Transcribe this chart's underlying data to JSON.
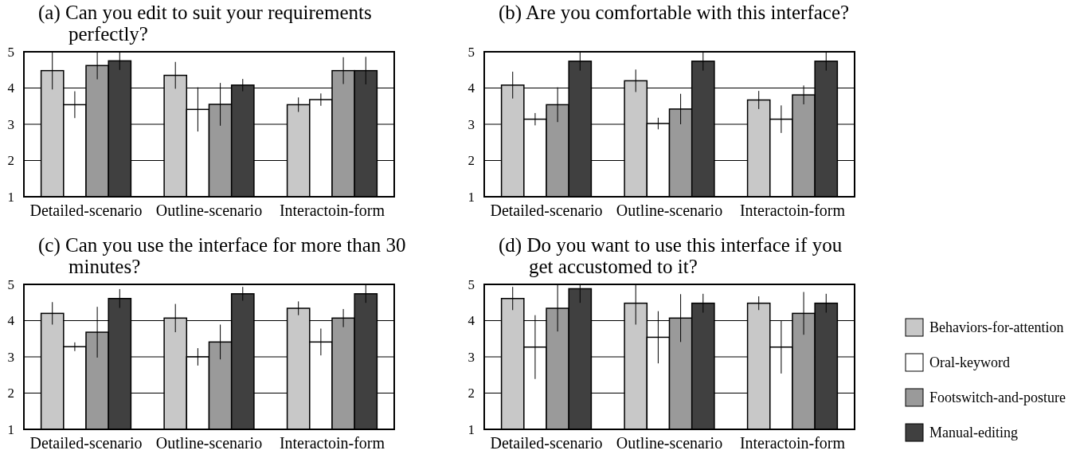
{
  "chart_data": [
    {
      "type": "bar",
      "title": "(a) Can you edit to suit your requirements perfectly?",
      "categories": [
        "Detailed-scenario",
        "Outline-scenario",
        "Interactoin-form"
      ],
      "ylim": [
        1,
        5
      ],
      "yticks": [
        1,
        2,
        3,
        4,
        5
      ],
      "grid": "y",
      "legend": false,
      "series": [
        {
          "color": "#c8c8c8",
          "values": [
            4.48,
            4.35,
            3.54
          ],
          "errors": [
            0.52,
            0.37,
            0.2
          ]
        },
        {
          "color": "#ffffff",
          "values": [
            3.54,
            3.41,
            3.68
          ],
          "errors": [
            0.37,
            0.61,
            0.17
          ]
        },
        {
          "color": "#9a9a9a",
          "values": [
            4.62,
            3.55,
            4.48
          ],
          "errors": [
            0.38,
            0.59,
            0.37
          ]
        },
        {
          "color": "#404040",
          "values": [
            4.75,
            4.08,
            4.48
          ],
          "errors": [
            0.25,
            0.17,
            0.38
          ]
        }
      ]
    },
    {
      "type": "bar",
      "title": "(b) Are you comfortable with this interface?",
      "categories": [
        "Detailed-scenario",
        "Outline-scenario",
        "Interactoin-form"
      ],
      "ylim": [
        1,
        5
      ],
      "yticks": [
        1,
        2,
        3,
        4,
        5
      ],
      "grid": "y",
      "legend": false,
      "series": [
        {
          "color": "#c8c8c8",
          "values": [
            4.08,
            4.2,
            3.67
          ],
          "errors": [
            0.37,
            0.31,
            0.25
          ]
        },
        {
          "color": "#ffffff",
          "values": [
            3.14,
            3.02,
            3.14
          ],
          "errors": [
            0.17,
            0.16,
            0.38
          ]
        },
        {
          "color": "#9a9a9a",
          "values": [
            3.54,
            3.42,
            3.81
          ],
          "errors": [
            0.48,
            0.42,
            0.26
          ]
        },
        {
          "color": "#404040",
          "values": [
            4.74,
            4.74,
            4.74
          ],
          "errors": [
            0.26,
            0.26,
            0.26
          ]
        }
      ]
    },
    {
      "type": "bar",
      "title": "(c) Can you use the interface for more than 30 minutes?",
      "categories": [
        "Detailed-scenario",
        "Outline-scenario",
        "Interactoin-form"
      ],
      "ylim": [
        1,
        5
      ],
      "yticks": [
        1,
        2,
        3,
        4,
        5
      ],
      "grid": "y",
      "legend": false,
      "series": [
        {
          "color": "#c8c8c8",
          "values": [
            4.2,
            4.07,
            4.34
          ],
          "errors": [
            0.31,
            0.39,
            0.19
          ]
        },
        {
          "color": "#ffffff",
          "values": [
            3.28,
            3.0,
            3.41
          ],
          "errors": [
            0.12,
            0.24,
            0.37
          ]
        },
        {
          "color": "#9a9a9a",
          "values": [
            3.68,
            3.41,
            4.07
          ],
          "errors": [
            0.7,
            0.48,
            0.25
          ]
        },
        {
          "color": "#404040",
          "values": [
            4.61,
            4.74,
            4.74
          ],
          "errors": [
            0.26,
            0.19,
            0.25
          ]
        }
      ]
    },
    {
      "type": "bar",
      "title": "(d) Do you want to use this interface if you get accustomed to it?",
      "categories": [
        "Detailed-scenario",
        "Outline-scenario",
        "Interactoin-form"
      ],
      "ylim": [
        1,
        5
      ],
      "yticks": [
        1,
        2,
        3,
        4,
        5
      ],
      "grid": "y",
      "legend": "right",
      "series": [
        {
          "name": "Behaviors-for-attention",
          "color": "#c8c8c8",
          "values": [
            4.61,
            4.48,
            4.48
          ],
          "errors": [
            0.32,
            [
              3.89,
              5.0
            ],
            0.19
          ]
        },
        {
          "name": "Oral-keyword",
          "color": "#ffffff",
          "values": [
            3.27,
            3.54,
            3.27
          ],
          "errors": [
            0.88,
            0.72,
            0.73
          ]
        },
        {
          "name": "Footswitch-and-posture",
          "color": "#9a9a9a",
          "values": [
            4.34,
            4.07,
            4.2
          ],
          "errors": [
            0.64,
            0.66,
            0.59
          ]
        },
        {
          "name": "Manual-editing",
          "color": "#404040",
          "values": [
            4.88,
            4.48,
            4.48
          ],
          "errors": [
            [
              4.49,
              5.0
            ],
            0.26,
            0.26
          ]
        }
      ]
    }
  ]
}
